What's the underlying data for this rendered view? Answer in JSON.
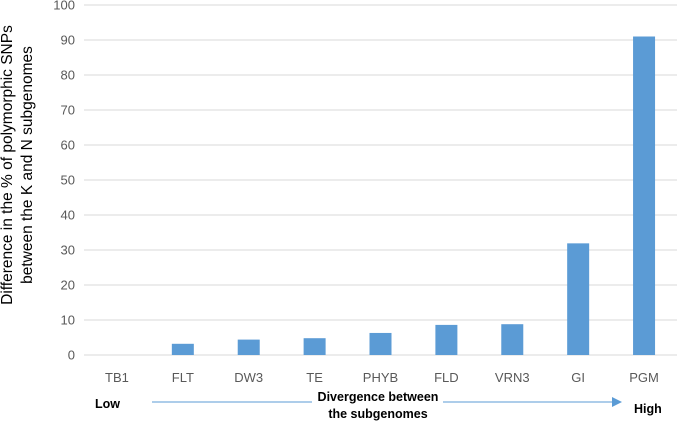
{
  "chart_data": {
    "type": "bar",
    "categories": [
      "TB1",
      "FLT",
      "DW3",
      "TE",
      "PHYB",
      "FLD",
      "VRN3",
      "GI",
      "PGM"
    ],
    "values": [
      0,
      3.2,
      4.4,
      4.8,
      6.3,
      8.6,
      8.8,
      31.9,
      91.0
    ],
    "title": "",
    "ylabel_lines": [
      "Difference in the % of polymorphic  SNPs",
      "between the K and N subgenomes"
    ],
    "xlabel": "",
    "ylim": [
      0,
      100
    ],
    "yticks": [
      0,
      10,
      20,
      30,
      40,
      50,
      60,
      70,
      80,
      90,
      100
    ],
    "grid": true,
    "bar_color": "#5b9bd5",
    "grid_color": "#d9d9d9"
  },
  "annotation": {
    "low_label": "Low",
    "middle_label_lines": [
      "Divergence between",
      "the subgenomes"
    ],
    "high_label": "High",
    "arrow_color": "#5b9bd5"
  }
}
